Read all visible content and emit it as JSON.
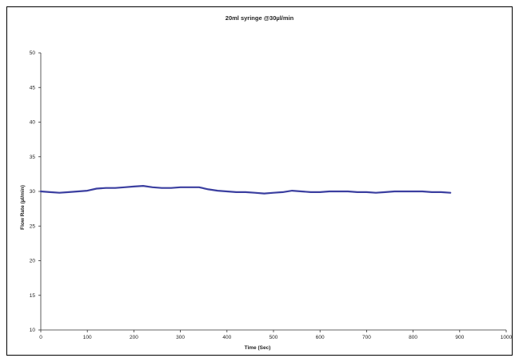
{
  "chart_data": {
    "type": "line",
    "title": "20ml syringe @30µl/min",
    "xlabel": "Time (Sec)",
    "ylabel": "Flow Rate (µl/min)",
    "xlim": [
      0,
      1000
    ],
    "ylim": [
      10,
      50
    ],
    "xticks": [
      "0",
      "100",
      "200",
      "300",
      "400",
      "500",
      "600",
      "700",
      "800",
      "900",
      "1000"
    ],
    "yticks": [
      "10",
      "15",
      "20",
      "25",
      "30",
      "35",
      "40",
      "45",
      "50"
    ],
    "grid": false,
    "legend": "none",
    "line_color": "#3b3fa0",
    "series": [
      {
        "x": [
          0,
          20,
          40,
          60,
          80,
          100,
          120,
          140,
          160,
          180,
          200,
          220,
          240,
          260,
          280,
          300,
          320,
          340,
          360,
          380,
          400,
          420,
          440,
          460,
          480,
          500,
          520,
          540,
          560,
          580,
          600,
          620,
          640,
          660,
          680,
          700,
          720,
          740,
          760,
          780,
          800,
          820,
          840,
          860,
          880
        ],
        "values": [
          30.0,
          29.9,
          29.8,
          29.9,
          30.0,
          30.1,
          30.4,
          30.5,
          30.5,
          30.6,
          30.7,
          30.8,
          30.6,
          30.5,
          30.5,
          30.6,
          30.6,
          30.6,
          30.3,
          30.1,
          30.0,
          29.9,
          29.9,
          29.8,
          29.7,
          29.8,
          29.9,
          30.1,
          30.0,
          29.9,
          29.9,
          30.0,
          30.0,
          30.0,
          29.9,
          29.9,
          29.8,
          29.9,
          30.0,
          30.0,
          30.0,
          30.0,
          29.9,
          29.9,
          29.8
        ]
      }
    ]
  }
}
